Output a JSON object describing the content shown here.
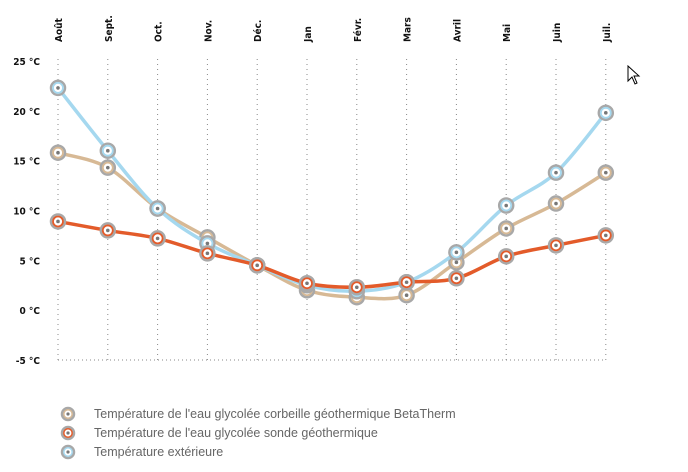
{
  "chart_data": {
    "type": "line",
    "title": "",
    "xlabel": "",
    "ylabel": "",
    "categories": [
      "Août",
      "Sept.",
      "Oct.",
      "Nov.",
      "Déc.",
      "Jan",
      "Févr.",
      "Mars",
      "Avril",
      "Mai",
      "Juin",
      "Juil."
    ],
    "y_ticks": [
      25,
      20,
      15,
      10,
      5,
      0,
      -5
    ],
    "y_tick_labels": [
      "25 °C",
      "20 °C",
      "15 °C",
      "10 °C",
      "5 °C",
      "0 °C",
      "-5 °C"
    ],
    "ylim": [
      -5,
      25
    ],
    "grid": "vertical dotted",
    "legend_position": "bottom-left",
    "series": [
      {
        "name": "Température de l'eau glycolée corbeille géothermique BetaTherm",
        "color": "#d7b995",
        "values": [
          15.8,
          14.3,
          10.2,
          7.3,
          4.5,
          2.0,
          1.3,
          1.5,
          4.8,
          8.2,
          10.7,
          13.8
        ]
      },
      {
        "name": "Température extérieure",
        "color": "#a5d8ef",
        "values": [
          22.3,
          16.0,
          10.2,
          6.7,
          4.5,
          2.5,
          1.9,
          2.8,
          5.8,
          10.5,
          13.8,
          19.8
        ]
      },
      {
        "name": "Température de l'eau glycolée sonde géothermique",
        "color": "#e35b2a",
        "values": [
          8.9,
          8.0,
          7.2,
          5.7,
          4.5,
          2.7,
          2.3,
          2.8,
          3.2,
          5.4,
          6.5,
          7.5
        ]
      }
    ]
  },
  "legend": [
    {
      "label": "Température de l'eau glycolée corbeille géothermique BetaTherm",
      "color": "#d7b995"
    },
    {
      "label": "Température de l'eau glycolée sonde géothermique",
      "color": "#e35b2a"
    },
    {
      "label": "Température extérieure",
      "color": "#a5d8ef"
    }
  ]
}
